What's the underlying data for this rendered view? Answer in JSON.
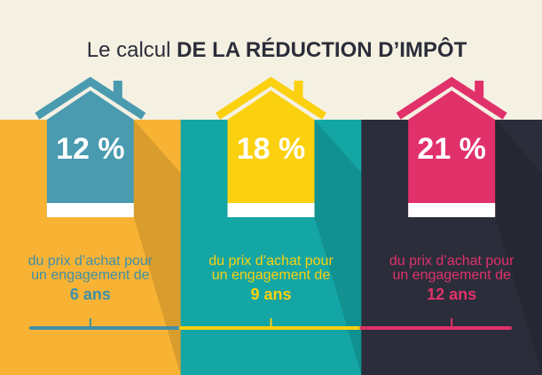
{
  "title": {
    "regular": "Le calcul",
    "bold": "DE LA RÉDUCTION D’IMPÔT"
  },
  "panels": [
    {
      "percent": "12 %",
      "line1": "du prix d’achat pour",
      "line2": "un engagement de",
      "duration": "6 ans"
    },
    {
      "percent": "18 %",
      "line1": "du prix d’achat pour",
      "line2": "un engagement de",
      "duration": "9 ans"
    },
    {
      "percent": "21 %",
      "line1": "du prix d’achat pour",
      "line2": "un engagement de",
      "duration": "12 ans"
    }
  ]
}
